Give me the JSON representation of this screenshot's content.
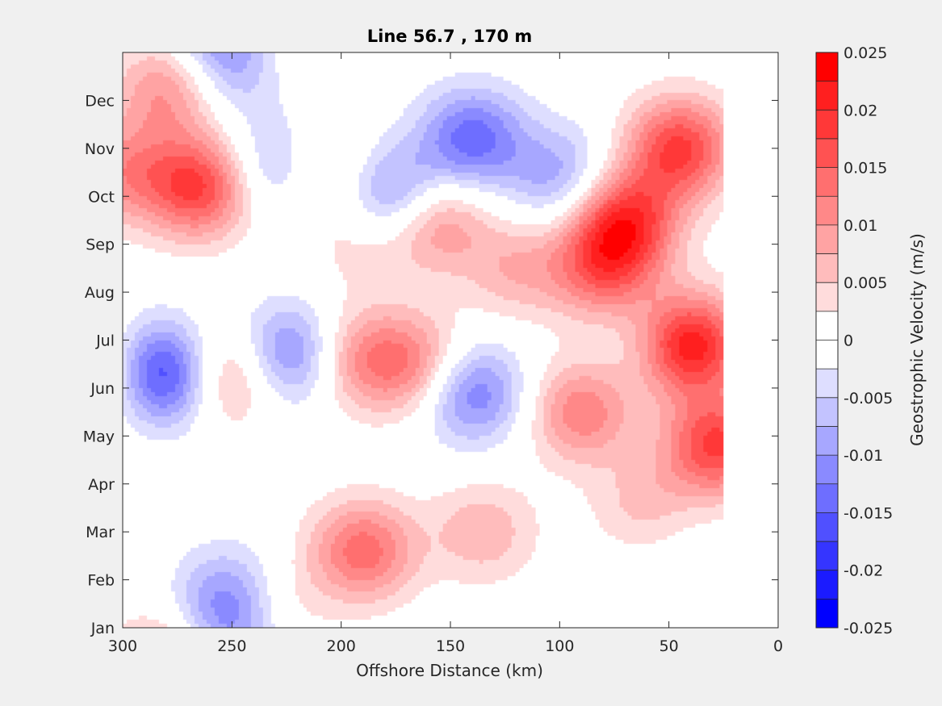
{
  "chart_data": {
    "type": "heatmap",
    "subtype": "filled-contour",
    "title": "Line 56.7 , 170 m",
    "xlabel": "Offshore Distance (km)",
    "ylabel": "",
    "xlim": [
      300,
      0
    ],
    "x_direction": "reversed",
    "x_ticks": [
      300,
      250,
      200,
      150,
      100,
      50,
      0
    ],
    "y_ticks": [
      "Jan",
      "Feb",
      "Mar",
      "Apr",
      "May",
      "Jun",
      "Jul",
      "Aug",
      "Sep",
      "Oct",
      "Nov",
      "Dec"
    ],
    "data_extent_km": [
      300,
      25
    ],
    "colorbar": {
      "label": "Geostrophic Velocity (m/s)",
      "limits": [
        -0.025,
        0.025
      ],
      "ticks": [
        "0.025",
        "0.02",
        "0.015",
        "0.01",
        "0.005",
        "0",
        "-0.005",
        "-0.01",
        "-0.015",
        "-0.02",
        "-0.025"
      ],
      "levels": [
        {
          "range": [
            0.0225,
            0.025
          ],
          "color": "#ff0000"
        },
        {
          "range": [
            0.02,
            0.0225
          ],
          "color": "#ff1f1f"
        },
        {
          "range": [
            0.0175,
            0.02
          ],
          "color": "#ff3838"
        },
        {
          "range": [
            0.015,
            0.0175
          ],
          "color": "#ff5252"
        },
        {
          "range": [
            0.0125,
            0.015
          ],
          "color": "#ff6f6f"
        },
        {
          "range": [
            0.01,
            0.0125
          ],
          "color": "#ff8888"
        },
        {
          "range": [
            0.0075,
            0.01
          ],
          "color": "#ffa3a3"
        },
        {
          "range": [
            0.005,
            0.0075
          ],
          "color": "#ffbcbc"
        },
        {
          "range": [
            0.0025,
            0.005
          ],
          "color": "#ffdcdc"
        },
        {
          "range": [
            0,
            0.0025
          ],
          "color": "#ffffff"
        },
        {
          "range": [
            -0.0025,
            0
          ],
          "color": "#ffffff"
        },
        {
          "range": [
            -0.005,
            -0.0025
          ],
          "color": "#dedeff"
        },
        {
          "range": [
            -0.0075,
            -0.005
          ],
          "color": "#c3c3ff"
        },
        {
          "range": [
            -0.01,
            -0.0075
          ],
          "color": "#a7a7ff"
        },
        {
          "range": [
            -0.0125,
            -0.01
          ],
          "color": "#8a8aff"
        },
        {
          "range": [
            -0.015,
            -0.0125
          ],
          "color": "#6e6eff"
        },
        {
          "range": [
            -0.0175,
            -0.015
          ],
          "color": "#5050ff"
        },
        {
          "range": [
            -0.02,
            -0.0175
          ],
          "color": "#3535ff"
        },
        {
          "range": [
            -0.0225,
            -0.02
          ],
          "color": "#1b1bff"
        },
        {
          "range": [
            -0.025,
            -0.0225
          ],
          "color": "#0000ff"
        }
      ]
    },
    "features": [
      {
        "x": 40,
        "y": 5.9,
        "value": 0.022
      },
      {
        "x": 70,
        "y": 8.5,
        "value": 0.018
      },
      {
        "x": 45,
        "y": 10.0,
        "value": 0.018
      },
      {
        "x": 28,
        "y": 3.8,
        "value": 0.018
      },
      {
        "x": 80,
        "y": 7.5,
        "value": 0.014
      },
      {
        "x": 90,
        "y": 4.5,
        "value": 0.012
      },
      {
        "x": 60,
        "y": 2.5,
        "value": 0.008
      },
      {
        "x": 265,
        "y": 9.2,
        "value": 0.018
      },
      {
        "x": 300,
        "y": 5.3,
        "value": 0.012
      },
      {
        "x": 300,
        "y": 9.5,
        "value": 0.01
      },
      {
        "x": 280,
        "y": 11.2,
        "value": 0.01
      },
      {
        "x": 190,
        "y": 1.6,
        "value": 0.014
      },
      {
        "x": 235,
        "y": 0.4,
        "value": 0.007
      },
      {
        "x": 165,
        "y": 5.5,
        "value": 0.01
      },
      {
        "x": 158,
        "y": 8.5,
        "value": 0.012
      },
      {
        "x": 250,
        "y": 5.3,
        "value": 0.01
      },
      {
        "x": 135,
        "y": 2.0,
        "value": 0.007
      },
      {
        "x": 120,
        "y": 7.5,
        "value": 0.007
      },
      {
        "x": 210,
        "y": 9.5,
        "value": 0.007
      },
      {
        "x": 190,
        "y": 5.6,
        "value": 0.01
      },
      {
        "x": 190,
        "y": 8.0,
        "value": 0.004
      },
      {
        "x": 285,
        "y": 5.3,
        "value": -0.024
      },
      {
        "x": 225,
        "y": 5.7,
        "value": -0.013
      },
      {
        "x": 140,
        "y": 4.9,
        "value": -0.013
      },
      {
        "x": 140,
        "y": 10.2,
        "value": -0.014
      },
      {
        "x": 175,
        "y": 9.0,
        "value": -0.013
      },
      {
        "x": 250,
        "y": 0.6,
        "value": -0.012
      },
      {
        "x": 100,
        "y": 9.4,
        "value": -0.009
      },
      {
        "x": 230,
        "y": 9.6,
        "value": -0.009
      },
      {
        "x": 248,
        "y": 11.7,
        "value": -0.007
      },
      {
        "x": 60,
        "y": 6.0,
        "value": -0.002
      },
      {
        "x": 55,
        "y": 2.2,
        "value": -0.003
      }
    ]
  }
}
